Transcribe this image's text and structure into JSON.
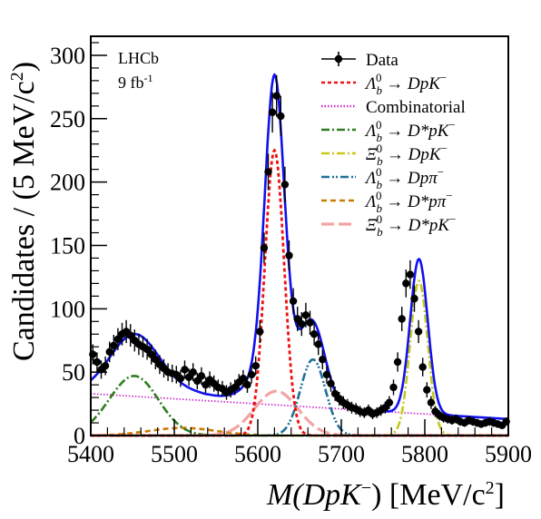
{
  "chart_data": {
    "type": "line",
    "experiment_label": "LHCb",
    "luminosity_label": "9 fb",
    "luminosity_exp": "-1",
    "xlabel_main": "M(DpK",
    "xlabel_sup": "−",
    "xlabel_units": ") [MeV/c",
    "xlabel_units_sup": "2",
    "xlabel_close": "]",
    "ylabel_main": "Candidates / (5 MeV/c",
    "ylabel_sup": "2",
    "ylabel_close": ")",
    "xlim": [
      5400,
      5900
    ],
    "ylim": [
      0,
      315
    ],
    "xticks": [
      5400,
      5500,
      5600,
      5700,
      5800,
      5900
    ],
    "yticks": [
      0,
      50,
      100,
      150,
      200,
      250,
      300
    ],
    "legend_position": "top-right",
    "legend": [
      {
        "text": "Data",
        "color": "#000000",
        "style": "data"
      },
      {
        "text": "Λb0 → DpK−",
        "color": "#ee1111",
        "style": "dot"
      },
      {
        "text": "Combinatorial",
        "color": "#cc33cc",
        "style": "finedot"
      },
      {
        "text": "Λb0 → D*pK−",
        "color": "#2e7d1e",
        "style": "dashdot"
      },
      {
        "text": "Ξb0 → DpK−",
        "color": "#c6c81a",
        "style": "dashdot"
      },
      {
        "text": "Λb0 → Dpπ−",
        "color": "#1f6f99",
        "style": "dashdotdot"
      },
      {
        "text": "Λb0 → D*pπ−",
        "color": "#cc7a00",
        "style": "dash"
      },
      {
        "text": "Ξb0 → D*pK−",
        "color": "#f4a3a3",
        "style": "longdash"
      }
    ],
    "legend_render": [
      [
        "Data",
        "",
        "",
        "",
        ""
      ],
      [
        "Λ",
        "b",
        "0",
        " → DpK",
        "−"
      ],
      [
        "Combinatorial",
        "",
        "",
        "",
        ""
      ],
      [
        "Λ",
        "b",
        "0",
        " → D*pK",
        "−"
      ],
      [
        "Ξ",
        "b",
        "0",
        " → DpK",
        "−"
      ],
      [
        "Λ",
        "b",
        "0",
        " → Dpπ",
        "−"
      ],
      [
        "Λ",
        "b",
        "0",
        " → D*pπ",
        "−"
      ],
      [
        "Ξ",
        "b",
        "0",
        " → D*pK",
        "−"
      ]
    ],
    "data_points": {
      "x": [
        5402.5,
        5407.5,
        5412.5,
        5417.5,
        5422.5,
        5427.5,
        5432.5,
        5437.5,
        5442.5,
        5447.5,
        5452.5,
        5457.5,
        5462.5,
        5467.5,
        5472.5,
        5477.5,
        5482.5,
        5487.5,
        5492.5,
        5497.5,
        5502.5,
        5507.5,
        5512.5,
        5517.5,
        5522.5,
        5527.5,
        5532.5,
        5537.5,
        5542.5,
        5547.5,
        5552.5,
        5557.5,
        5562.5,
        5567.5,
        5572.5,
        5577.5,
        5582.5,
        5587.5,
        5592.5,
        5597.5,
        5602.5,
        5607.5,
        5612.5,
        5617.5,
        5622.5,
        5627.5,
        5632.5,
        5637.5,
        5642.5,
        5647.5,
        5652.5,
        5657.5,
        5662.5,
        5667.5,
        5672.5,
        5677.5,
        5682.5,
        5687.5,
        5692.5,
        5697.5,
        5702.5,
        5707.5,
        5712.5,
        5717.5,
        5722.5,
        5727.5,
        5732.5,
        5737.5,
        5742.5,
        5747.5,
        5752.5,
        5757.5,
        5762.5,
        5767.5,
        5772.5,
        5777.5,
        5782.5,
        5787.5,
        5792.5,
        5797.5,
        5802.5,
        5807.5,
        5812.5,
        5817.5,
        5822.5,
        5827.5,
        5832.5,
        5837.5,
        5842.5,
        5847.5,
        5852.5,
        5857.5,
        5862.5,
        5867.5,
        5872.5,
        5877.5,
        5882.5,
        5887.5,
        5892.5,
        5897.5
      ],
      "y": [
        64,
        58,
        52,
        55,
        66,
        71,
        76,
        80,
        82,
        79,
        75,
        72,
        70,
        68,
        64,
        60,
        56,
        53,
        50,
        49,
        48,
        45,
        52,
        46,
        50,
        43,
        47,
        40,
        44,
        41,
        38,
        37,
        34,
        36,
        38,
        42,
        45,
        40,
        48,
        55,
        82,
        148,
        208,
        255,
        268,
        252,
        198,
        142,
        106,
        92,
        88,
        95,
        89,
        80,
        72,
        60,
        48,
        41,
        33,
        29,
        26,
        24,
        22,
        21,
        19,
        18,
        20,
        17,
        18,
        20,
        22,
        26,
        38,
        58,
        92,
        120,
        127,
        108,
        82,
        54,
        36,
        26,
        19,
        16,
        14,
        13,
        12,
        13,
        11,
        10,
        12,
        11,
        10,
        9,
        10,
        11,
        10,
        9,
        8,
        11
      ]
    },
    "curves": {
      "total": {
        "color": "#1111ee"
      },
      "Lb_DpK": {
        "color": "#ee1111"
      },
      "combinatorial": {
        "color": "#cc33cc"
      },
      "Lb_DstarpK": {
        "color": "#2e7d1e"
      },
      "Xib_DpK": {
        "color": "#c6c81a"
      },
      "Lb_Dppi": {
        "color": "#1f6f99"
      },
      "Lb_Dstarppi": {
        "color": "#cc7a00"
      },
      "Xib_DstarpK": {
        "color": "#f4a3a3"
      }
    },
    "components": {
      "Lb_DpK": {
        "peak": 5620,
        "sigma": 11.5,
        "height": 225
      },
      "Xib_DpK": {
        "peak": 5793,
        "sigma": 10.5,
        "height": 122
      },
      "Lb_Dppi": {
        "peak": 5666,
        "sigma": 15,
        "height": 60
      },
      "Lb_DstarpK": {
        "peak": 5452,
        "sigma": 30,
        "height": 47
      },
      "Xib_DstarpK": {
        "peak": 5622,
        "sigma": 26,
        "height": 35
      },
      "Lb_Dstarppi": {
        "peak": 5510,
        "sigma": 40,
        "height": 6
      },
      "combinatorial": {
        "at_5400": 33,
        "at_5900": 13
      }
    }
  }
}
